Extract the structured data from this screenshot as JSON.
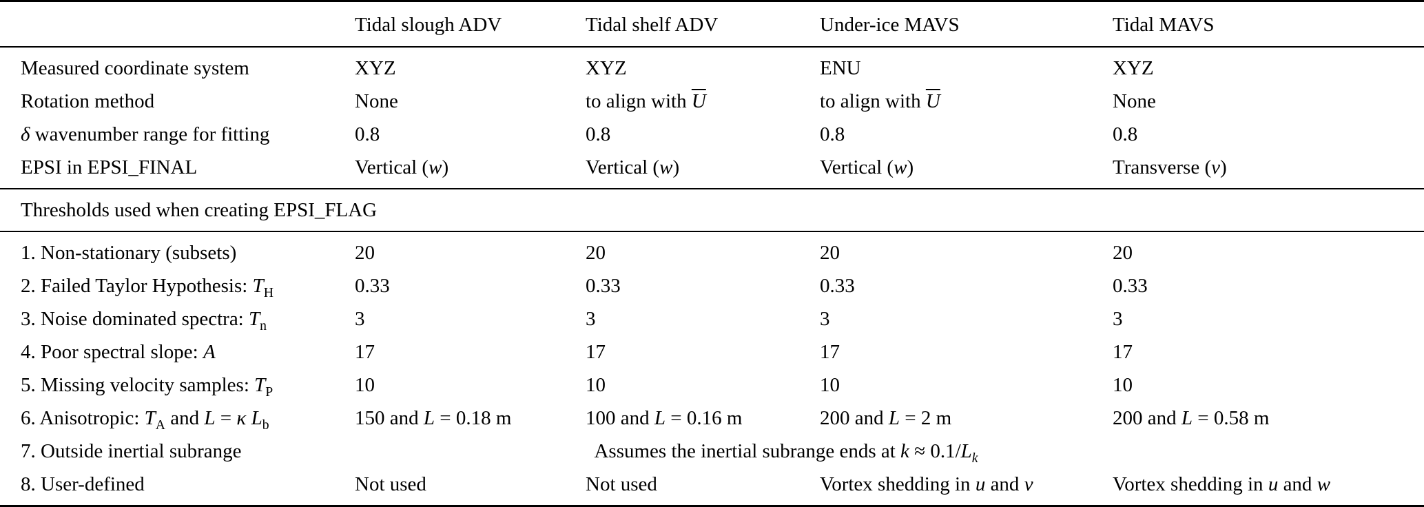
{
  "table": {
    "header": {
      "col0": "",
      "col1": "Tidal slough ADV",
      "col2": "Tidal shelf ADV",
      "col3": "Under-ice MAVS",
      "col4": "Tidal MAVS"
    },
    "setup_rows": [
      {
        "label": "Measured coordinate system",
        "values": [
          "XYZ",
          "XYZ",
          "ENU",
          "XYZ"
        ]
      },
      {
        "label": "Rotation method",
        "values": [
          "None",
          "to align with <span class=\"ov\">U</span>",
          "to align with <span class=\"ov\">U</span>",
          "None"
        ]
      },
      {
        "label": "<i>&delta;</i> wavenumber range for fitting",
        "values": [
          "0.8",
          "0.8",
          "0.8",
          "0.8"
        ]
      },
      {
        "label": "EPSI in EPSI_FINAL",
        "values": [
          "Vertical (<i>w</i>)",
          "Vertical (<i>w</i>)",
          "Vertical (<i>w</i>)",
          "Transverse (<i>v</i>)"
        ]
      }
    ],
    "section_header": "Thresholds used when creating EPSI_FLAG",
    "threshold_rows": [
      {
        "label": "1. Non-stationary (subsets)",
        "values": [
          "20",
          "20",
          "20",
          "20"
        ]
      },
      {
        "label": "2. Failed Taylor Hypothesis: <span class=\"cal\">T</span><sub>H</sub>",
        "values": [
          "0.33",
          "0.33",
          "0.33",
          "0.33"
        ]
      },
      {
        "label": "3. Noise dominated spectra: <span class=\"cal\">T</span><sub>n</sub>",
        "values": [
          "3",
          "3",
          "3",
          "3"
        ]
      },
      {
        "label": "4. Poor spectral slope: <i>A</i>",
        "values": [
          "17",
          "17",
          "17",
          "17"
        ]
      },
      {
        "label": "5. Missing velocity samples: <span class=\"cal\">T</span><sub>P</sub>",
        "values": [
          "10",
          "10",
          "10",
          "10"
        ]
      },
      {
        "label": "6. Anisotropic: <span class=\"cal\">T</span><sub>A</sub> and <i>L</i> = <i>&kappa;</i> <i>L</i><sub>b</sub>",
        "values": [
          "150 and <i>L</i> = 0.18 m",
          "100 and <i>L</i> = 0.16 m",
          "200 and <i>L</i> = 2 m",
          "200 and <i>L</i> = 0.58 m"
        ]
      }
    ],
    "inertial_row": {
      "label": "7. Outside inertial subrange",
      "span_value": "Assumes the inertial subrange ends at <i>k</i> &#8776; 0.1/<i>L<sub>k</sub></i>"
    },
    "user_defined_row": {
      "label": "8. User-defined",
      "values": [
        "Not used",
        "Not used",
        "Vortex shedding in <i>u</i> and <i>v</i>",
        "Vortex shedding in <i>u</i> and <i>w</i>"
      ]
    }
  }
}
